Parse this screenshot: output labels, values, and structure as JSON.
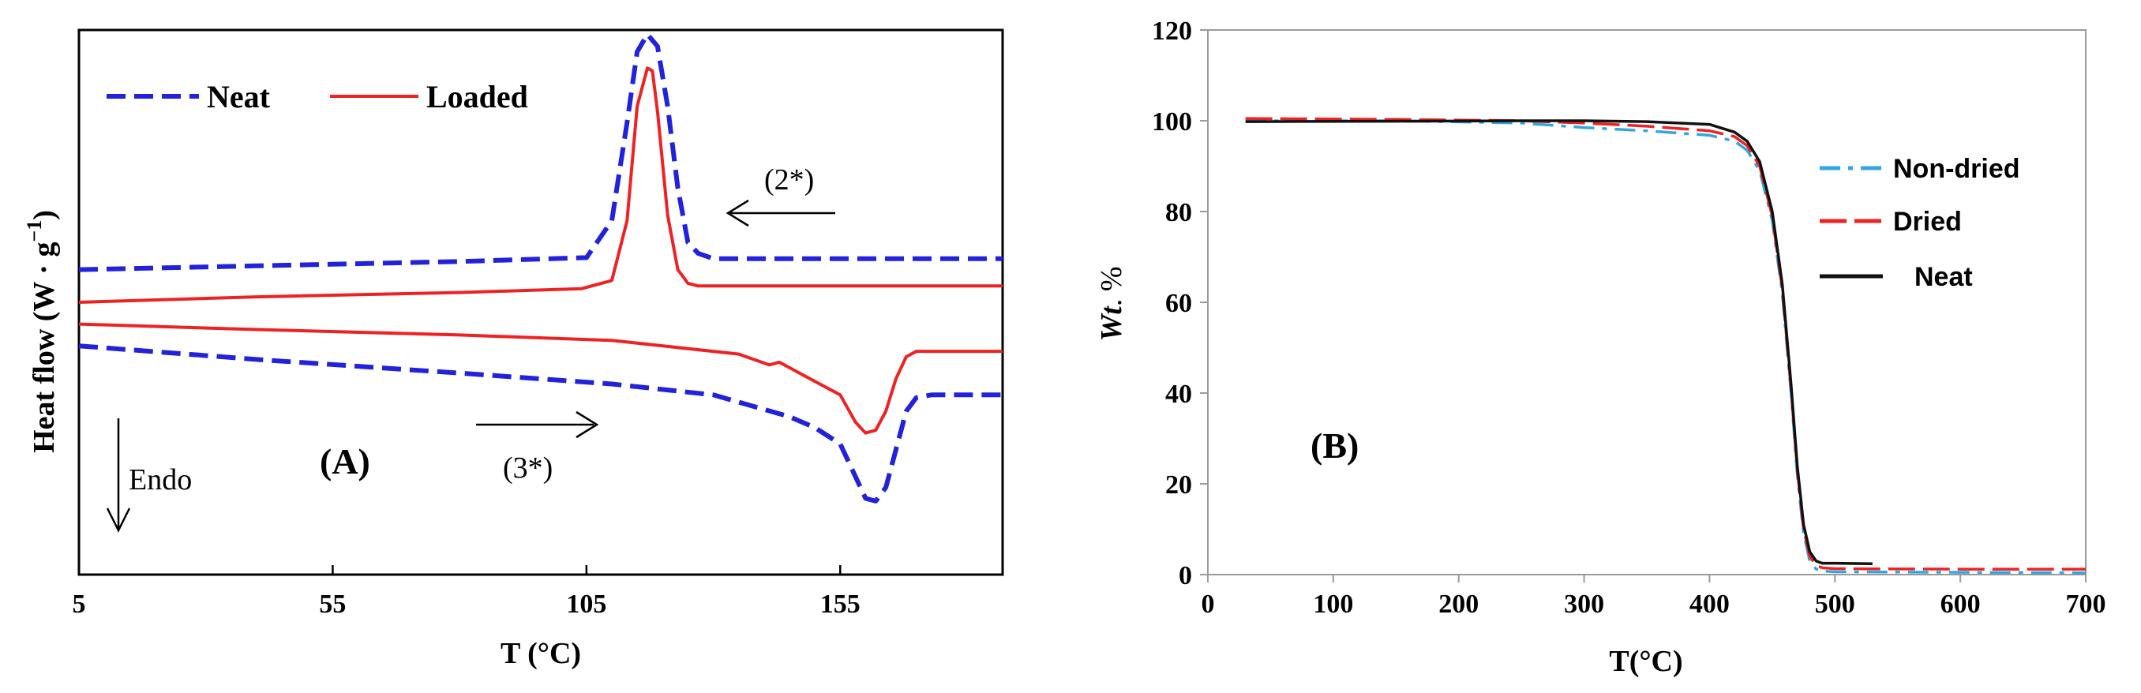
{
  "colors": {
    "blue": "#2222dd",
    "red": "#ee2222",
    "cyan": "#33a6e0",
    "black": "#111111"
  },
  "chart_data": [
    {
      "type": "line",
      "panel_label": "(A)",
      "xlabel": "T (°C)",
      "ylabel_prefix": "Heat flow (W · g",
      "ylabel_exp": "−1",
      "ylabel_suffix": ")",
      "xlim": [
        5,
        187
      ],
      "ylim": [
        0,
        10
      ],
      "xticks": [
        "5",
        "55",
        "105",
        "155"
      ],
      "xtick_values": [
        5,
        55,
        105,
        155
      ],
      "legend": {
        "placement": "top-left",
        "entries": [
          "Neat",
          "Loaded"
        ]
      },
      "annotations": {
        "cooling_note": "(2*)",
        "heating_note": "(3*)",
        "endo_label": "Endo"
      },
      "series": [
        {
          "name": "Neat",
          "curve": "cooling",
          "style": "dashed",
          "color": "#2222dd",
          "x": [
            5,
            40,
            80,
            105,
            110,
            113,
            115,
            117,
            119,
            121,
            123,
            125,
            127,
            130,
            140,
            187
          ],
          "y": [
            5.6,
            5.67,
            5.75,
            5.82,
            6.5,
            8.3,
            9.6,
            9.92,
            9.7,
            8.6,
            7.1,
            6.1,
            5.9,
            5.8,
            5.8,
            5.8
          ]
        },
        {
          "name": "Loaded",
          "curve": "cooling",
          "style": "solid",
          "color": "#ee2222",
          "x": [
            5,
            40,
            80,
            104,
            110,
            113,
            115,
            117,
            118,
            119,
            121,
            123,
            125,
            127,
            130,
            140,
            187
          ],
          "y": [
            5.0,
            5.1,
            5.18,
            5.25,
            5.4,
            6.5,
            8.6,
            9.3,
            9.25,
            8.5,
            6.6,
            5.6,
            5.35,
            5.3,
            5.3,
            5.3,
            5.3
          ]
        },
        {
          "name": "Neat",
          "curve": "heating",
          "style": "dashed",
          "color": "#2222dd",
          "x": [
            5,
            40,
            80,
            110,
            130,
            145,
            150,
            155,
            158,
            160,
            162,
            164,
            166,
            168,
            170,
            173,
            187
          ],
          "y": [
            4.2,
            3.95,
            3.7,
            3.5,
            3.3,
            2.9,
            2.7,
            2.4,
            1.8,
            1.4,
            1.35,
            1.6,
            2.3,
            3.0,
            3.25,
            3.3,
            3.3
          ]
        },
        {
          "name": "Loaded",
          "curve": "heating",
          "style": "solid",
          "color": "#ee2222",
          "x": [
            5,
            40,
            80,
            110,
            135,
            141,
            143,
            146,
            150,
            155,
            158,
            160,
            162,
            164,
            166,
            168,
            170,
            187
          ],
          "y": [
            4.6,
            4.5,
            4.4,
            4.3,
            4.05,
            3.85,
            3.9,
            3.75,
            3.55,
            3.3,
            2.8,
            2.6,
            2.65,
            3.0,
            3.6,
            4.0,
            4.1,
            4.1
          ]
        }
      ]
    },
    {
      "type": "line",
      "panel_label": "(B)",
      "xlabel": "T(°C)",
      "ylabel_italic": "Wt",
      "ylabel_rest": ". %",
      "xlim": [
        0,
        700
      ],
      "ylim": [
        0,
        120
      ],
      "xticks": [
        "0",
        "100",
        "200",
        "300",
        "400",
        "500",
        "600",
        "700"
      ],
      "xtick_values": [
        0,
        100,
        200,
        300,
        400,
        500,
        600,
        700
      ],
      "yticks": [
        "0",
        "20",
        "40",
        "60",
        "80",
        "100",
        "120"
      ],
      "ytick_values": [
        0,
        20,
        40,
        60,
        80,
        100,
        120
      ],
      "legend": {
        "placement": "right",
        "entries": [
          "Non-dried",
          "Dried",
          "Neat"
        ]
      },
      "series": [
        {
          "name": "Non-dried",
          "style": "dashdot",
          "color": "#33a6e0",
          "x": [
            30,
            150,
            250,
            300,
            350,
            400,
            420,
            430,
            440,
            450,
            458,
            465,
            470,
            475,
            480,
            485,
            490,
            500,
            600,
            700
          ],
          "y": [
            100,
            100,
            99.5,
            98.5,
            97.8,
            96.8,
            95.5,
            93.5,
            89,
            78,
            62,
            40,
            22,
            9,
            3,
            1.2,
            0.8,
            0.6,
            0.5,
            0.4
          ]
        },
        {
          "name": "Dried",
          "style": "dashed",
          "color": "#ee2222",
          "x": [
            30,
            150,
            250,
            300,
            350,
            400,
            420,
            430,
            440,
            450,
            458,
            465,
            470,
            475,
            480,
            485,
            490,
            500,
            600,
            700
          ],
          "y": [
            100.5,
            100.3,
            100,
            99.5,
            98.8,
            97.8,
            96.5,
            94.5,
            90,
            79,
            63,
            41,
            23,
            10,
            4,
            2,
            1.5,
            1.3,
            1.2,
            1.2
          ]
        },
        {
          "name": "Neat",
          "style": "solid",
          "color": "#111111",
          "x": [
            30,
            150,
            250,
            300,
            350,
            400,
            420,
            430,
            440,
            450,
            458,
            465,
            470,
            475,
            480,
            485,
            490,
            500,
            530
          ],
          "y": [
            99.8,
            99.9,
            100,
            100,
            99.8,
            99.2,
            97.5,
            95.5,
            91,
            80,
            64,
            42,
            24,
            11,
            5,
            3,
            2.5,
            2.5,
            2.4
          ]
        }
      ]
    }
  ]
}
